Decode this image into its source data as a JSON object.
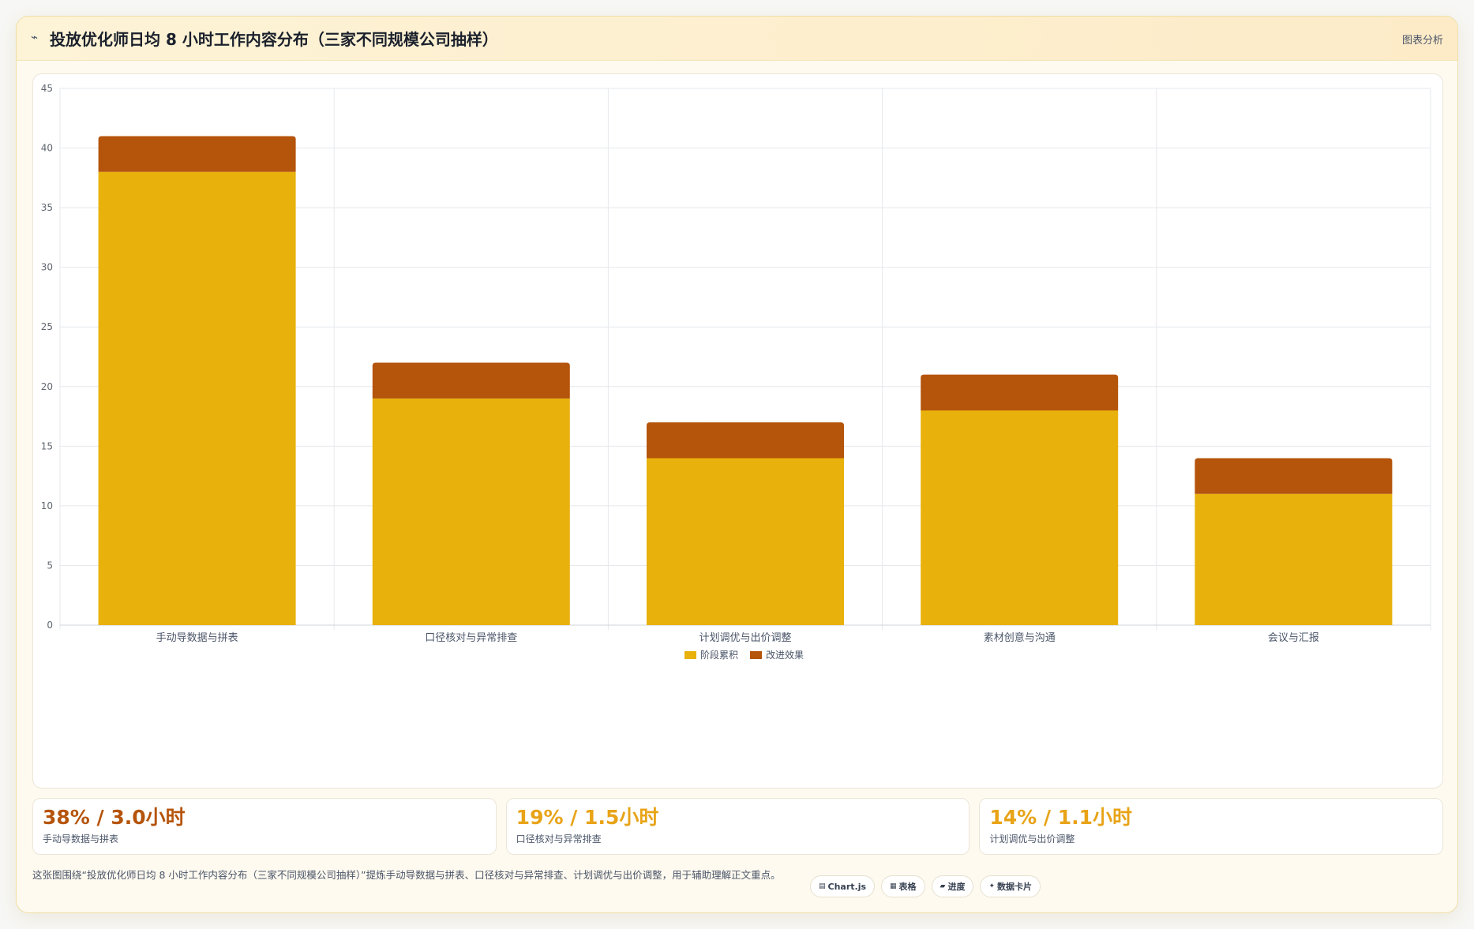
{
  "header": {
    "icon": "trend-icon",
    "title": "投放优化师日均 8 小时工作内容分布（三家不同规模公司抽样）",
    "action": "图表分析"
  },
  "chart_data": {
    "type": "bar",
    "stacked": true,
    "title": "",
    "xlabel": "",
    "ylabel": "",
    "ylim": [
      0,
      45
    ],
    "yticks": [
      0,
      5,
      10,
      15,
      20,
      25,
      30,
      35,
      40,
      45
    ],
    "categories": [
      "手动导数据与拼表",
      "口径核对与异常排查",
      "计划调优与出价调整",
      "素材创意与沟通",
      "会议与汇报"
    ],
    "series": [
      {
        "name": "阶段累积",
        "color": "#e8b10c",
        "values": [
          38,
          19,
          14,
          18,
          11
        ]
      },
      {
        "name": "改进效果",
        "color": "#b5540b",
        "values": [
          3,
          3,
          3,
          3,
          3
        ]
      }
    ],
    "grid": true,
    "legend": "bottom"
  },
  "stats": [
    {
      "value": "38% / 3.0小时",
      "label": "手动导数据与拼表",
      "color": "#b5540b"
    },
    {
      "value": "19% / 1.5小时",
      "label": "口径核对与异常排查",
      "color": "#e8a317"
    },
    {
      "value": "14% / 1.1小时",
      "label": "计划调优与出价调整",
      "color": "#e8a317"
    }
  ],
  "footer": {
    "text": "这张图围绕“投放优化师日均 8 小时工作内容分布（三家不同规模公司抽样）”提炼手动导数据与拼表、口径核对与异常排查、计划调优与出价调整，用于辅助理解正文重点。",
    "chips": [
      {
        "icon": "chart-icon",
        "glyph": "▤",
        "label": "Chart.js"
      },
      {
        "icon": "table-icon",
        "glyph": "▦",
        "label": "表格"
      },
      {
        "icon": "progress-icon",
        "glyph": "▰",
        "label": "进度"
      },
      {
        "icon": "sparkle-icon",
        "glyph": "✦",
        "label": "数据卡片"
      }
    ]
  }
}
